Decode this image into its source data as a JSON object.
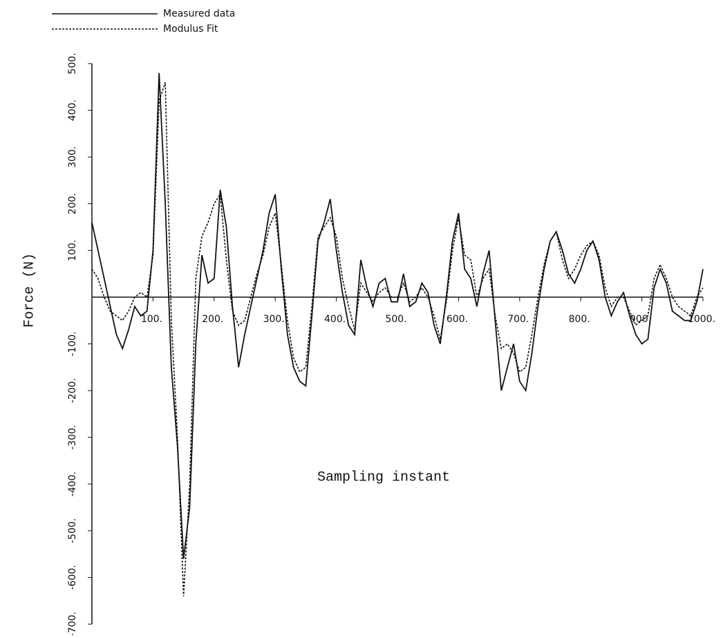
{
  "chart_data": {
    "type": "line",
    "xlabel": "Sampling instant",
    "ylabel": "Force (N)",
    "x": [
      0,
      10,
      20,
      30,
      40,
      50,
      60,
      70,
      80,
      90,
      100,
      110,
      120,
      130,
      140,
      150,
      160,
      170,
      180,
      190,
      200,
      210,
      220,
      230,
      240,
      250,
      260,
      270,
      280,
      290,
      300,
      310,
      320,
      330,
      340,
      350,
      360,
      370,
      380,
      390,
      400,
      410,
      420,
      430,
      440,
      450,
      460,
      470,
      480,
      490,
      500,
      510,
      520,
      530,
      540,
      550,
      560,
      570,
      580,
      590,
      600,
      610,
      620,
      630,
      640,
      650,
      660,
      670,
      680,
      690,
      700,
      710,
      720,
      730,
      740,
      750,
      760,
      770,
      780,
      790,
      800,
      810,
      820,
      830,
      840,
      850,
      860,
      870,
      880,
      890,
      900,
      910,
      920,
      930,
      940,
      950,
      960,
      970,
      980,
      990,
      1000
    ],
    "series": [
      {
        "name": "Measured data",
        "color": "#111111",
        "dash": "solid",
        "values": [
          160,
          100,
          40,
          -20,
          -80,
          -110,
          -70,
          -20,
          -40,
          -30,
          100,
          480,
          200,
          -150,
          -320,
          -560,
          -450,
          -100,
          90,
          30,
          40,
          230,
          150,
          -20,
          -150,
          -80,
          -20,
          40,
          100,
          180,
          220,
          60,
          -80,
          -150,
          -180,
          -190,
          -40,
          120,
          160,
          210,
          100,
          10,
          -60,
          -80,
          80,
          20,
          -20,
          30,
          40,
          -10,
          -10,
          50,
          -20,
          -10,
          30,
          10,
          -60,
          -100,
          0,
          120,
          180,
          60,
          40,
          -20,
          50,
          100,
          -50,
          -200,
          -150,
          -100,
          -180,
          -200,
          -120,
          -20,
          60,
          120,
          140,
          100,
          50,
          30,
          60,
          100,
          120,
          80,
          0,
          -40,
          -10,
          10,
          -40,
          -80,
          -100,
          -90,
          20,
          60,
          30,
          -30,
          -40,
          -50,
          -50,
          -10,
          60
        ]
      },
      {
        "name": "Modulus Fit",
        "color": "#111111",
        "dash": "dotted",
        "values": [
          60,
          40,
          0,
          -30,
          -40,
          -50,
          -30,
          0,
          10,
          0,
          90,
          420,
          460,
          -50,
          -300,
          -640,
          -400,
          40,
          130,
          160,
          200,
          220,
          80,
          -30,
          -60,
          -50,
          0,
          50,
          90,
          150,
          180,
          70,
          -50,
          -130,
          -160,
          -150,
          -20,
          130,
          150,
          170,
          130,
          40,
          -20,
          -70,
          30,
          10,
          -10,
          10,
          20,
          0,
          0,
          30,
          -10,
          0,
          20,
          0,
          -40,
          -90,
          -10,
          100,
          170,
          90,
          80,
          0,
          40,
          60,
          -40,
          -110,
          -100,
          -120,
          -160,
          -150,
          -80,
          0,
          70,
          120,
          140,
          80,
          40,
          60,
          90,
          110,
          120,
          90,
          20,
          -20,
          0,
          0,
          -30,
          -60,
          -50,
          -40,
          40,
          70,
          40,
          0,
          -20,
          -30,
          -40,
          0,
          20
        ]
      }
    ],
    "xlim": [
      0,
      1000
    ],
    "ylim": [
      -700,
      500
    ],
    "xticks": [
      {
        "value": 100,
        "label": "100."
      },
      {
        "value": 200,
        "label": "200."
      },
      {
        "value": 300,
        "label": "300."
      },
      {
        "value": 400,
        "label": "400."
      },
      {
        "value": 500,
        "label": "500."
      },
      {
        "value": 600,
        "label": "600."
      },
      {
        "value": 700,
        "label": "700."
      },
      {
        "value": 800,
        "label": "800."
      },
      {
        "value": 900,
        "label": "900."
      },
      {
        "value": 1000,
        "label": "1000."
      }
    ],
    "yticks": [
      {
        "value": 500,
        "label": "500."
      },
      {
        "value": 400,
        "label": "400."
      },
      {
        "value": 300,
        "label": "300."
      },
      {
        "value": 200,
        "label": "200."
      },
      {
        "value": 100,
        "label": "100."
      },
      {
        "value": -100,
        "label": "-100."
      },
      {
        "value": -200,
        "label": "-200."
      },
      {
        "value": -300,
        "label": "-300."
      },
      {
        "value": -400,
        "label": "-400."
      },
      {
        "value": -500,
        "label": "-500."
      },
      {
        "value": -600,
        "label": "-600."
      },
      {
        "value": -700,
        "label": "-700."
      }
    ],
    "grid": false
  }
}
